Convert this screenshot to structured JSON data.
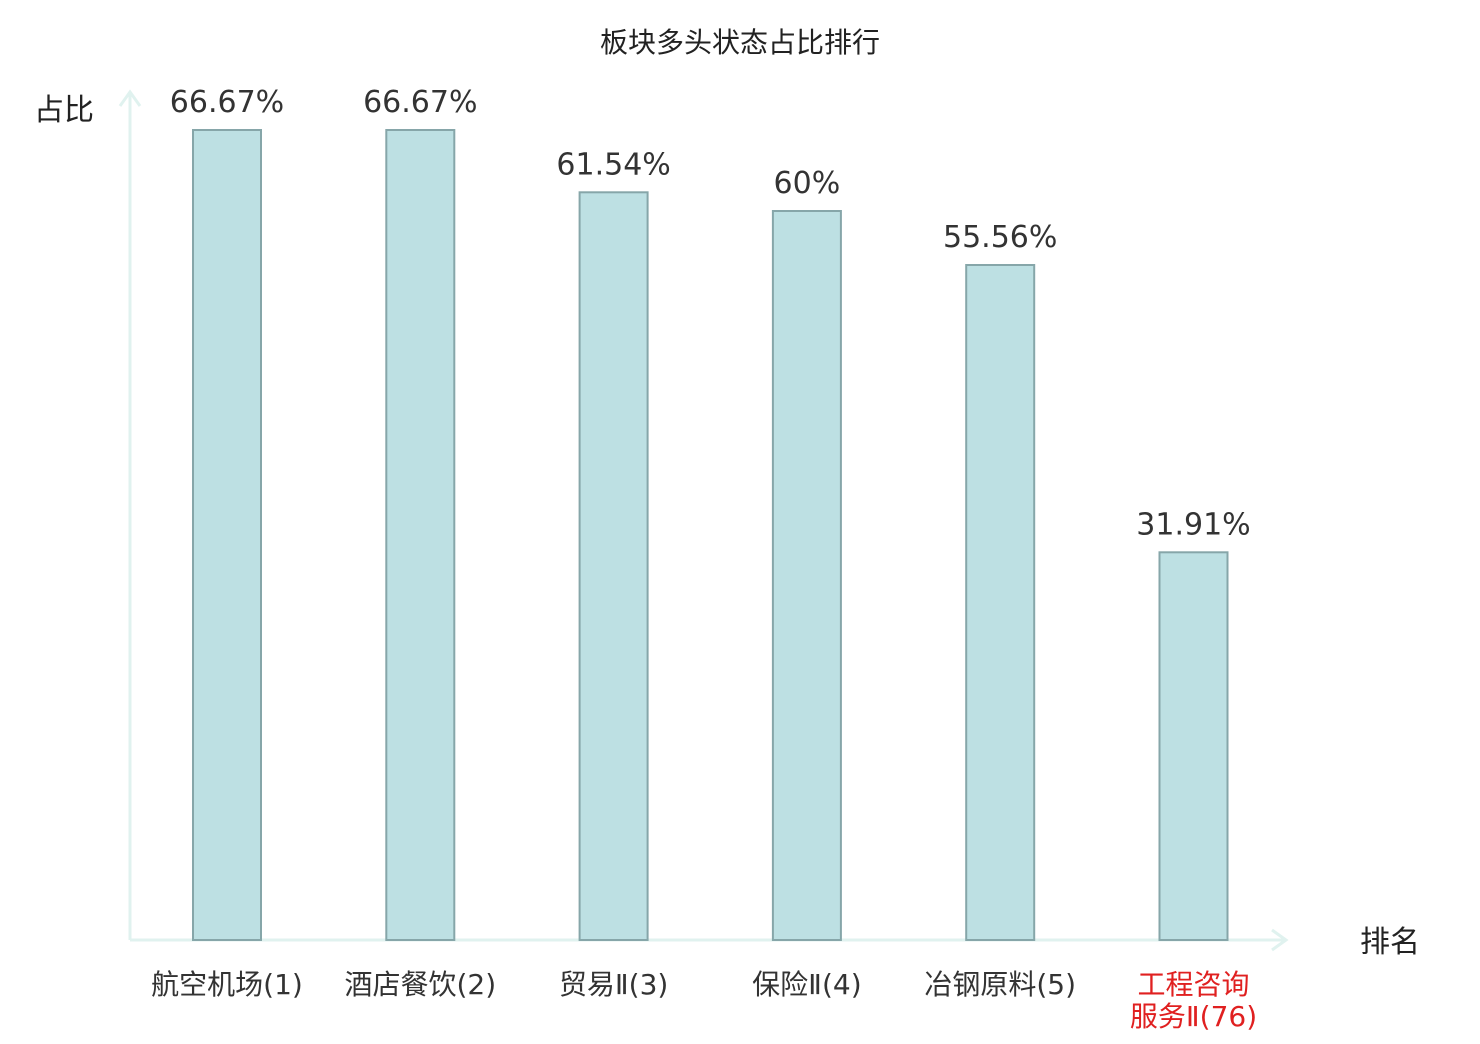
{
  "colors": {
    "bar_fill": "#bde0e3",
    "bar_stroke": "#86a6a9",
    "axis": "#e0f2ef",
    "text": "#333333",
    "highlight_text": "#e02020"
  },
  "chart_data": {
    "type": "bar",
    "title": "板块多头状态占比排行",
    "xlabel": "排名",
    "ylabel": "占比",
    "ylim": [
      0,
      70
    ],
    "grid": false,
    "legend": "none",
    "categories": [
      [
        "航空机场(1)"
      ],
      [
        "酒店餐饮(2)"
      ],
      [
        "贸易Ⅱ(3)"
      ],
      [
        "保险Ⅱ(4)"
      ],
      [
        "冶钢原料(5)"
      ],
      [
        "工程咨询",
        "服务Ⅱ(76)"
      ]
    ],
    "values": [
      66.67,
      66.67,
      61.54,
      60,
      55.56,
      31.91
    ],
    "value_labels": [
      "66.67%",
      "66.67%",
      "61.54%",
      "60%",
      "55.56%",
      "31.91%"
    ],
    "highlight_index": 5
  }
}
